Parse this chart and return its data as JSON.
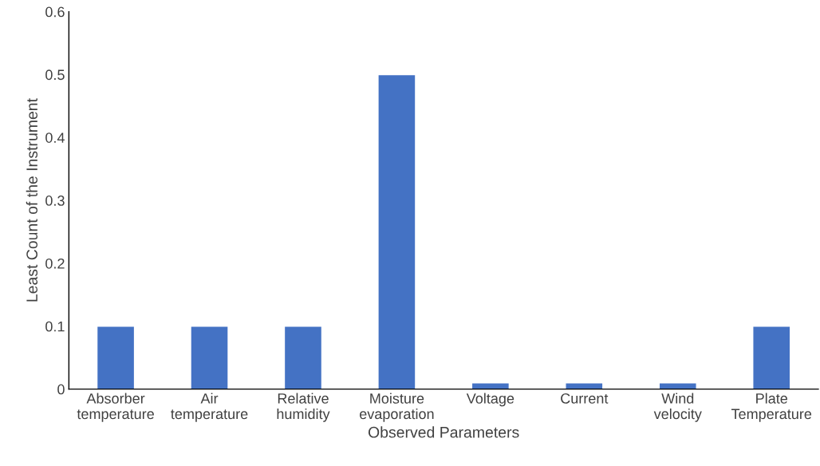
{
  "chart_data": {
    "type": "bar",
    "xlabel": "Observed Parameters",
    "ylabel": "Least Count of the Instrument",
    "categories": [
      "Absorber temperature",
      "Air temperature",
      "Relative humidity",
      "Moisture evaporation",
      "Voltage",
      "Current",
      "Wind velocity",
      "Plate Temperature"
    ],
    "values": [
      0.1,
      0.1,
      0.1,
      0.5,
      0.01,
      0.01,
      0.01,
      0.1
    ],
    "color": "#4472c4",
    "ylim": [
      0,
      0.6
    ],
    "yticks": [
      0,
      0.1,
      0.2,
      0.3,
      0.4,
      0.5,
      0.6
    ],
    "grid": false,
    "legend": false
  }
}
